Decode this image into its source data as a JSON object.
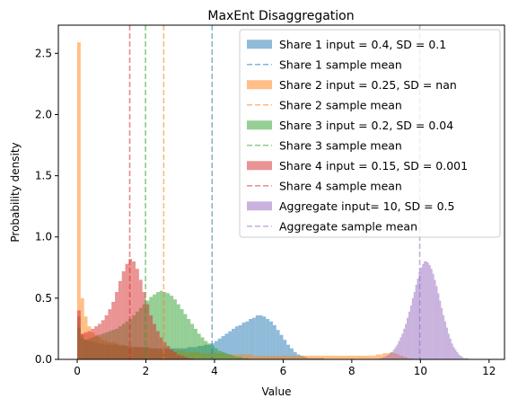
{
  "chart_data": {
    "type": "histogram",
    "title": "MaxEnt Disaggregation",
    "xlabel": "Value",
    "ylabel": "Probability density",
    "xlim": [
      -0.55,
      12.45
    ],
    "ylim": [
      0,
      2.73
    ],
    "x_ticks": [
      0,
      2,
      4,
      6,
      8,
      10,
      12
    ],
    "y_ticks": [
      0.0,
      0.5,
      1.0,
      1.5,
      2.0,
      2.5
    ],
    "x_tick_labels": [
      "0",
      "2",
      "4",
      "6",
      "8",
      "10",
      "12"
    ],
    "y_tick_labels": [
      "0.0",
      "0.5",
      "1.0",
      "1.5",
      "2.0",
      "2.5"
    ],
    "grid": false,
    "legend_position": "upper right",
    "series": [
      {
        "name": "Share 1 input = 0.4, SD = 0.1",
        "mean_line_label": "Share 1 sample mean",
        "color": "#1f77b4",
        "sample_mean": 3.93,
        "x_start": 0,
        "bin_width": 0.1,
        "values": [
          0.35,
          0.2,
          0.16,
          0.15,
          0.15,
          0.14,
          0.13,
          0.13,
          0.12,
          0.12,
          0.12,
          0.12,
          0.11,
          0.11,
          0.11,
          0.1,
          0.1,
          0.1,
          0.1,
          0.1,
          0.1,
          0.09,
          0.09,
          0.09,
          0.09,
          0.09,
          0.09,
          0.09,
          0.09,
          0.09,
          0.09,
          0.09,
          0.1,
          0.1,
          0.1,
          0.11,
          0.11,
          0.12,
          0.12,
          0.13,
          0.15,
          0.17,
          0.19,
          0.21,
          0.23,
          0.25,
          0.27,
          0.28,
          0.3,
          0.31,
          0.33,
          0.34,
          0.36,
          0.36,
          0.35,
          0.33,
          0.31,
          0.28,
          0.24,
          0.2,
          0.16,
          0.12,
          0.09,
          0.06,
          0.04,
          0.03,
          0.02,
          0.01,
          0.01,
          0.01,
          0.01,
          0.01
        ]
      },
      {
        "name": "Share 2 input = 0.25, SD = nan",
        "mean_line_label": "Share 2 sample mean",
        "color": "#ff7f0e",
        "sample_mean": 2.52,
        "x_start": 0,
        "bin_width": 0.1,
        "values": [
          2.59,
          0.5,
          0.35,
          0.27,
          0.22,
          0.2,
          0.18,
          0.16,
          0.15,
          0.14,
          0.14,
          0.13,
          0.12,
          0.12,
          0.11,
          0.11,
          0.1,
          0.1,
          0.1,
          0.09,
          0.09,
          0.09,
          0.09,
          0.08,
          0.08,
          0.08,
          0.08,
          0.07,
          0.07,
          0.07,
          0.07,
          0.06,
          0.06,
          0.06,
          0.06,
          0.06,
          0.05,
          0.05,
          0.05,
          0.05,
          0.05,
          0.05,
          0.05,
          0.04,
          0.04,
          0.04,
          0.04,
          0.04,
          0.04,
          0.04,
          0.04,
          0.03,
          0.03,
          0.03,
          0.03,
          0.03,
          0.03,
          0.03,
          0.03,
          0.03,
          0.03,
          0.03,
          0.03,
          0.03,
          0.03,
          0.03,
          0.03,
          0.03,
          0.03,
          0.03,
          0.03,
          0.03,
          0.03,
          0.03,
          0.03,
          0.03,
          0.03,
          0.03,
          0.03,
          0.03,
          0.03,
          0.03,
          0.03,
          0.03,
          0.03,
          0.03,
          0.03,
          0.04,
          0.04,
          0.05,
          0.05,
          0.06,
          0.05,
          0.04,
          0.03,
          0.02,
          0.01,
          0.01
        ]
      },
      {
        "name": "Share 3 input = 0.2, SD = 0.04",
        "mean_line_label": "Share 3 sample mean",
        "color": "#2ca02c",
        "sample_mean": 1.99,
        "x_start": 0,
        "bin_width": 0.1,
        "values": [
          0.26,
          0.17,
          0.16,
          0.17,
          0.18,
          0.19,
          0.2,
          0.21,
          0.22,
          0.23,
          0.24,
          0.25,
          0.27,
          0.29,
          0.31,
          0.33,
          0.36,
          0.39,
          0.42,
          0.45,
          0.48,
          0.51,
          0.53,
          0.55,
          0.56,
          0.55,
          0.54,
          0.52,
          0.49,
          0.45,
          0.41,
          0.37,
          0.33,
          0.29,
          0.25,
          0.21,
          0.18,
          0.15,
          0.13,
          0.11,
          0.09,
          0.07,
          0.06,
          0.05,
          0.04,
          0.03,
          0.02,
          0.02,
          0.01,
          0.01
        ]
      },
      {
        "name": "Share 4 input = 0.15, SD = 0.001",
        "mean_line_label": "Share 4 sample mean",
        "color": "#d62728",
        "sample_mean": 1.53,
        "x_start": 0,
        "bin_width": 0.1,
        "values": [
          0.4,
          0.21,
          0.22,
          0.23,
          0.25,
          0.27,
          0.29,
          0.32,
          0.36,
          0.41,
          0.47,
          0.55,
          0.64,
          0.72,
          0.78,
          0.82,
          0.8,
          0.74,
          0.65,
          0.55,
          0.45,
          0.36,
          0.29,
          0.23,
          0.18,
          0.14,
          0.11,
          0.08,
          0.06,
          0.04,
          0.03,
          0.02,
          0.01,
          0.01
        ]
      },
      {
        "name": "Aggregate input= 10, SD = 0.5",
        "mean_line_label": "Aggregate sample mean",
        "color": "#9467bd",
        "sample_mean": 9.98,
        "x_start": 8.8,
        "bin_width": 0.05,
        "values": [
          0.01,
          0.01,
          0.02,
          0.02,
          0.03,
          0.04,
          0.05,
          0.06,
          0.08,
          0.1,
          0.12,
          0.15,
          0.18,
          0.21,
          0.25,
          0.29,
          0.34,
          0.39,
          0.44,
          0.5,
          0.55,
          0.61,
          0.66,
          0.71,
          0.75,
          0.78,
          0.8,
          0.8,
          0.79,
          0.77,
          0.74,
          0.7,
          0.65,
          0.6,
          0.54,
          0.48,
          0.42,
          0.36,
          0.31,
          0.26,
          0.21,
          0.17,
          0.13,
          0.1,
          0.08,
          0.06,
          0.04,
          0.03,
          0.02,
          0.01,
          0.01,
          0.01
        ]
      }
    ]
  }
}
